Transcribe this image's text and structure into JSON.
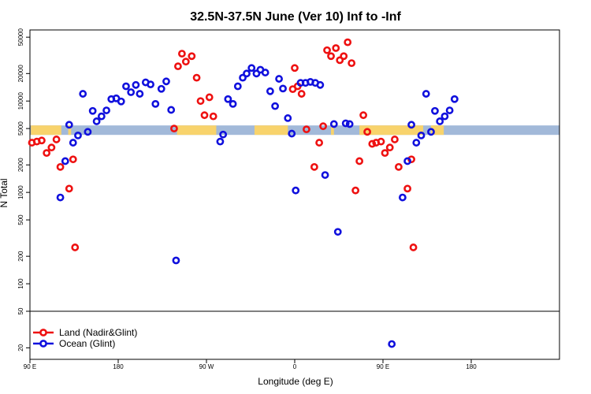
{
  "chart_data": {
    "type": "scatter",
    "title": "32.5N-37.5N June (Ver 10)   Inf to -Inf",
    "xlabel": "Longitude (deg E)",
    "ylabel": "N Total",
    "y_scale": "log",
    "xlim": [
      90,
      630
    ],
    "ylim_upper": [
      50,
      60000
    ],
    "ylim_lower": [
      15,
      50
    ],
    "x_ticks": [
      {
        "value": 90,
        "label": "90 E"
      },
      {
        "value": 180,
        "label": "180"
      },
      {
        "value": 270,
        "label": "90 W"
      },
      {
        "value": 360,
        "label": "0"
      },
      {
        "value": 450,
        "label": "90 E"
      },
      {
        "value": 540,
        "label": "180"
      }
    ],
    "y_ticks_upper": [
      {
        "value": 50000,
        "label": "50000"
      },
      {
        "value": 20000,
        "label": "20000"
      },
      {
        "value": 10000,
        "label": "10000"
      },
      {
        "value": 5000,
        "label": "5000"
      },
      {
        "value": 2000,
        "label": "2000"
      },
      {
        "value": 1000,
        "label": "1000"
      },
      {
        "value": 500,
        "label": "500"
      },
      {
        "value": 200,
        "label": "200"
      },
      {
        "value": 100,
        "label": "100"
      },
      {
        "value": 50,
        "label": "50"
      }
    ],
    "y_ticks_lower": [
      {
        "value": 20,
        "label": "20"
      }
    ],
    "legend": {
      "position": "bottom-left"
    },
    "band": {
      "y": 4800,
      "land_color": "#f8d36c",
      "ocean_color": "#a2b9d9",
      "land_segments": [
        [
          91,
          122
        ],
        [
          129,
          132
        ],
        [
          240,
          280
        ],
        [
          319,
          353
        ],
        [
          397,
          400
        ],
        [
          426,
          491
        ],
        [
          499,
          512
        ]
      ]
    },
    "series": [
      {
        "name": "Land (Nadir&Glint)",
        "color": "#ee1111",
        "points": [
          [
            92,
            3500
          ],
          [
            97,
            3600
          ],
          [
            102,
            3700
          ],
          [
            107,
            2700
          ],
          [
            112,
            3100
          ],
          [
            117,
            3800
          ],
          [
            121,
            1900
          ],
          [
            130,
            1100
          ],
          [
            134,
            2300
          ],
          [
            136,
            250
          ],
          [
            237,
            5000
          ],
          [
            241,
            24000
          ],
          [
            245,
            33000
          ],
          [
            249,
            27000
          ],
          [
            255,
            31000
          ],
          [
            260,
            18000
          ],
          [
            264,
            10000
          ],
          [
            268,
            7000
          ],
          [
            273,
            11000
          ],
          [
            277,
            6800
          ],
          [
            358,
            13500
          ],
          [
            360,
            23000
          ],
          [
            363,
            14500
          ],
          [
            367,
            12000
          ],
          [
            372,
            4900
          ],
          [
            380,
            1900
          ],
          [
            385,
            3500
          ],
          [
            389,
            5300
          ],
          [
            393,
            36000
          ],
          [
            397,
            31000
          ],
          [
            402,
            38000
          ],
          [
            406,
            28000
          ],
          [
            410,
            31000
          ],
          [
            414,
            44000
          ],
          [
            418,
            26000
          ],
          [
            422,
            1050
          ],
          [
            426,
            2200
          ],
          [
            430,
            7000
          ],
          [
            434,
            4600
          ],
          [
            439,
            3400
          ],
          [
            443,
            3500
          ],
          [
            448,
            3600
          ],
          [
            452,
            2700
          ],
          [
            457,
            3100
          ],
          [
            462,
            3800
          ],
          [
            466,
            1900
          ],
          [
            475,
            1100
          ],
          [
            479,
            2300
          ],
          [
            481,
            250
          ]
        ]
      },
      {
        "name": "Ocean (Glint)",
        "color": "#1010dd",
        "points": [
          [
            121,
            880
          ],
          [
            126,
            2200
          ],
          [
            130,
            5500
          ],
          [
            134,
            3500
          ],
          [
            139,
            4200
          ],
          [
            144,
            12000
          ],
          [
            149,
            4600
          ],
          [
            154,
            7800
          ],
          [
            158,
            6000
          ],
          [
            163,
            6800
          ],
          [
            168,
            7900
          ],
          [
            173,
            10500
          ],
          [
            178,
            10700
          ],
          [
            183,
            9900
          ],
          [
            188,
            14500
          ],
          [
            193,
            12500
          ],
          [
            198,
            15000
          ],
          [
            202,
            12000
          ],
          [
            208,
            16000
          ],
          [
            213,
            15200
          ],
          [
            218,
            9300
          ],
          [
            224,
            13600
          ],
          [
            229,
            16400
          ],
          [
            234,
            8000
          ],
          [
            239,
            180
          ],
          [
            284,
            3600
          ],
          [
            287,
            4300
          ],
          [
            292,
            10500
          ],
          [
            297,
            9300
          ],
          [
            302,
            14500
          ],
          [
            307,
            18000
          ],
          [
            311,
            20000
          ],
          [
            316,
            23000
          ],
          [
            321,
            20000
          ],
          [
            325,
            22000
          ],
          [
            330,
            20500
          ],
          [
            335,
            12800
          ],
          [
            340,
            8800
          ],
          [
            344,
            17500
          ],
          [
            348,
            13700
          ],
          [
            353,
            6500
          ],
          [
            357,
            4400
          ],
          [
            361,
            1050
          ],
          [
            366,
            15800
          ],
          [
            371,
            15800
          ],
          [
            376,
            16200
          ],
          [
            381,
            15800
          ],
          [
            386,
            15000
          ],
          [
            391,
            1550
          ],
          [
            400,
            5600
          ],
          [
            404,
            370
          ],
          [
            412,
            5700
          ],
          [
            416,
            5600
          ],
          [
            459,
            22
          ],
          [
            470,
            880
          ],
          [
            475,
            2200
          ],
          [
            479,
            5500
          ],
          [
            484,
            3500
          ],
          [
            489,
            4200
          ],
          [
            494,
            12000
          ],
          [
            499,
            4600
          ],
          [
            503,
            7800
          ],
          [
            508,
            6000
          ],
          [
            513,
            6800
          ],
          [
            518,
            7900
          ],
          [
            523,
            10500
          ]
        ]
      }
    ]
  }
}
